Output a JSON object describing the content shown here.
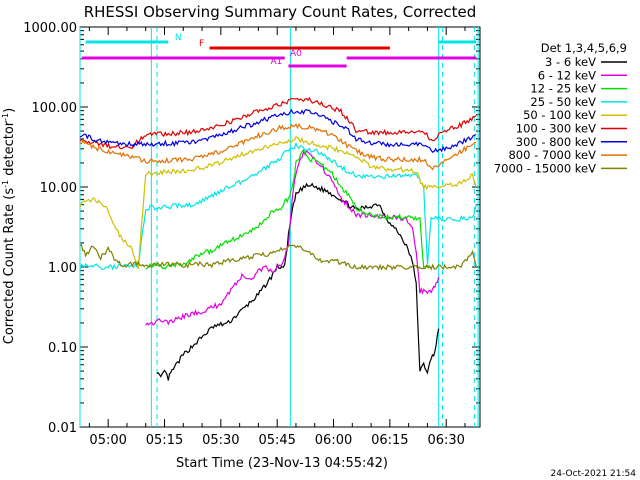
{
  "chart_data": {
    "type": "line",
    "title": "RHESSI Observing Summary Count Rates, Corrected",
    "xlabel": "Start Time (23-Nov-13 04:55:42)",
    "ylabel_main": "Corrected Count Rate (s",
    "ylabel_sup": "-1",
    "ylabel_tail": " detector",
    "ylabel_sup2": "-1",
    "ylabel_end": ")",
    "yscale": "log",
    "ylim": [
      0.01,
      1000
    ],
    "yticks": [
      "1000.00",
      "100.00",
      "10.00",
      "1.00",
      "0.10",
      "0.01"
    ],
    "xlim_minutes": [
      -7.5,
      99
    ],
    "xticks": [
      "05:00",
      "05:15",
      "05:30",
      "05:45",
      "06:00",
      "06:15",
      "06:30"
    ],
    "legend_title": "Det 1,3,4,5,6,9",
    "footer": "24-Oct-2021 21:54",
    "bars": [
      {
        "label": "N",
        "color": "#00e5e5",
        "segments": [
          [
            -6.0,
            16.0
          ],
          [
            88.0,
            98.0
          ]
        ],
        "row": 0
      },
      {
        "label": "F",
        "color": "#e00000",
        "segments": [
          [
            27.0,
            75.0
          ]
        ],
        "row": 1
      },
      {
        "label": "A0",
        "color": "#e000e0",
        "segments": [
          [
            -7.0,
            47.0
          ],
          [
            63.5,
            98.0
          ]
        ],
        "row": 2
      },
      {
        "label": "A1",
        "color": "#e000e0",
        "segments": [
          [
            48.0,
            63.5
          ]
        ],
        "row": 3
      }
    ],
    "vlines_solid": [
      -7.5,
      11.5,
      48.5,
      88.0,
      98.5
    ],
    "vlines_dashed": [
      13.0,
      89.0,
      97.5
    ],
    "series": [
      {
        "name": "3 - 6 keV",
        "color": "#000000",
        "x": [
          13,
          14,
          15,
          16,
          17,
          20,
          24,
          28,
          32,
          36,
          40,
          43,
          45,
          47,
          48,
          49,
          50,
          52,
          54,
          55,
          58,
          61,
          63,
          66,
          69,
          72,
          75,
          77,
          79,
          81,
          82,
          83,
          84,
          85,
          86,
          87,
          88
        ],
        "y": [
          0.05,
          0.04,
          0.05,
          0.04,
          0.05,
          0.08,
          0.12,
          0.18,
          0.2,
          0.3,
          0.45,
          0.7,
          1.0,
          1.0,
          2.5,
          5.0,
          8.0,
          10.0,
          10.5,
          10.0,
          9.0,
          7.5,
          6.5,
          5.2,
          5.6,
          6.2,
          3.5,
          2.8,
          2.0,
          1.2,
          0.6,
          0.05,
          0.06,
          0.05,
          0.07,
          0.09,
          0.17
        ]
      },
      {
        "name": "6 - 12 keV",
        "color": "#e000e0",
        "x": [
          10,
          12,
          14,
          16,
          18,
          21,
          24,
          27,
          30,
          33,
          36,
          38,
          40,
          42,
          44,
          45,
          46,
          47,
          48,
          49,
          50,
          52,
          54,
          56,
          58,
          60,
          62,
          63,
          66,
          69,
          72,
          76,
          79,
          81,
          82,
          83,
          84,
          85,
          86,
          87,
          88
        ],
        "y": [
          0.2,
          0.2,
          0.22,
          0.2,
          0.22,
          0.25,
          0.27,
          0.3,
          0.35,
          0.55,
          0.8,
          0.7,
          0.9,
          1.0,
          0.8,
          1.0,
          1.1,
          1.3,
          2.0,
          7.0,
          15.0,
          28.0,
          25.0,
          20.0,
          15.0,
          11.0,
          7.0,
          6.5,
          4.5,
          4.4,
          4.3,
          4.2,
          4.0,
          3.0,
          1.5,
          0.5,
          0.5,
          0.48,
          0.5,
          0.55,
          0.75
        ]
      },
      {
        "name": "12 - 25 keV",
        "color": "#00e000",
        "x": [
          10,
          13,
          16,
          19,
          22,
          25,
          28,
          31,
          34,
          37,
          40,
          42,
          44,
          46,
          47,
          48,
          49,
          50,
          52,
          54,
          56,
          58,
          60,
          62,
          63,
          64,
          66,
          70,
          74,
          78,
          81,
          83,
          84,
          86
        ],
        "y": [
          1.0,
          1.05,
          1.0,
          1.1,
          1.2,
          1.5,
          1.6,
          2.0,
          2.3,
          2.7,
          3.2,
          4.0,
          5.0,
          5.5,
          6.5,
          7.0,
          9.5,
          20.0,
          28.0,
          22.0,
          20.0,
          17.0,
          14.0,
          10.0,
          9.0,
          8.0,
          5.5,
          4.5,
          4.2,
          4.2,
          4.1,
          4.0,
          1.0,
          0.95
        ]
      },
      {
        "name": "25 - 50 keV",
        "color": "#00e5e5",
        "x": [
          -7.5,
          -4,
          -2,
          0,
          2,
          4,
          6,
          8,
          10,
          12,
          14,
          18,
          22,
          26,
          30,
          34,
          38,
          40,
          44,
          46,
          48,
          50,
          52,
          54,
          56,
          58,
          60,
          62,
          64,
          66,
          70,
          74,
          78,
          82,
          84,
          85,
          86,
          88,
          90,
          94,
          97,
          98
        ],
        "y": [
          1.0,
          1.05,
          1.0,
          1.0,
          1.0,
          1.05,
          1.0,
          1.05,
          5.5,
          5.6,
          5.5,
          5.8,
          6.0,
          7.0,
          9.0,
          11.0,
          13.0,
          15.0,
          20.0,
          23.0,
          30.0,
          33.0,
          31.0,
          29.0,
          27.0,
          24.0,
          21.0,
          18.0,
          15.5,
          14.0,
          13.5,
          13.5,
          13.8,
          13.8,
          10.0,
          1.1,
          4.0,
          4.0,
          4.0,
          4.0,
          4.0,
          6.0
        ]
      },
      {
        "name": "50 - 100 keV",
        "color": "#d0c000",
        "x": [
          -7.5,
          -4,
          -1,
          1,
          3,
          6,
          8,
          10,
          12,
          16,
          20,
          24,
          28,
          32,
          36,
          40,
          44,
          48,
          50,
          52,
          54,
          56,
          60,
          64,
          66,
          70,
          74,
          78,
          82,
          84,
          86,
          88,
          90,
          94,
          97,
          98
        ],
        "y": [
          6.0,
          7.0,
          6.0,
          4.0,
          2.5,
          1.8,
          1.0,
          15.0,
          15.0,
          15.5,
          16.0,
          17.0,
          19.0,
          22.0,
          26.0,
          30.0,
          34.0,
          38.0,
          40.0,
          38.0,
          36.0,
          34.0,
          30.0,
          27.0,
          24.0,
          18.0,
          17.0,
          16.5,
          16.0,
          10.0,
          10.0,
          10.0,
          10.5,
          11.0,
          14.0,
          10.0
        ]
      },
      {
        "name": "100 - 300 keV",
        "color": "#e00000",
        "x": [
          -7.5,
          -4,
          -1,
          2,
          6,
          10,
          14,
          18,
          22,
          26,
          30,
          34,
          38,
          42,
          46,
          50,
          52,
          54,
          58,
          62,
          64,
          66,
          70,
          74,
          78,
          82,
          84,
          86,
          90,
          94,
          98
        ],
        "y": [
          40.0,
          36.0,
          33.0,
          32.0,
          31.0,
          45.0,
          46.0,
          47.0,
          48.0,
          52.0,
          60.0,
          70.0,
          82.0,
          95.0,
          110.0,
          125.0,
          125.0,
          120.0,
          105.0,
          88.0,
          70.0,
          50.0,
          48.0,
          48.0,
          48.0,
          49.0,
          50.0,
          38.0,
          50.0,
          60.0,
          78.0
        ]
      },
      {
        "name": "300 - 800 keV",
        "color": "#0000e0",
        "x": [
          -7.5,
          -4,
          -1,
          2,
          6,
          10,
          14,
          18,
          22,
          26,
          30,
          34,
          38,
          42,
          46,
          50,
          54,
          58,
          62,
          64,
          66,
          70,
          74,
          78,
          82,
          84,
          86,
          90,
          94,
          98
        ],
        "y": [
          45.0,
          40.0,
          37.0,
          36.0,
          34.0,
          34.0,
          35.0,
          35.0,
          36.0,
          40.0,
          45.0,
          52.0,
          60.0,
          70.0,
          80.0,
          90.0,
          85.0,
          72.0,
          58.0,
          50.0,
          40.0,
          36.0,
          34.0,
          34.0,
          34.0,
          34.0,
          28.0,
          30.0,
          36.0,
          45.0
        ]
      },
      {
        "name": "800 - 7000 keV",
        "color": "#e07000",
        "x": [
          -7.5,
          -4,
          -1,
          2,
          6,
          10,
          14,
          18,
          22,
          26,
          30,
          34,
          38,
          42,
          46,
          50,
          54,
          58,
          62,
          64,
          66,
          70,
          74,
          78,
          82,
          84,
          86,
          90,
          94,
          98
        ],
        "y": [
          38.0,
          32.0,
          28.0,
          26.0,
          24.0,
          21.0,
          21.0,
          22.0,
          22.0,
          24.0,
          28.0,
          33.0,
          40.0,
          48.0,
          55.0,
          58.0,
          55.0,
          48.0,
          38.0,
          32.0,
          28.0,
          24.0,
          22.0,
          22.0,
          22.0,
          22.0,
          17.0,
          22.0,
          28.0,
          36.0
        ]
      },
      {
        "name": "7000 - 15000 keV",
        "color": "#808000",
        "x": [
          -7.5,
          -6,
          -4,
          -2,
          0,
          2,
          3,
          4,
          8,
          12,
          16,
          20,
          24,
          28,
          32,
          36,
          40,
          44,
          48,
          52,
          56,
          60,
          63,
          64,
          66,
          70,
          74,
          78,
          82,
          86,
          90,
          94,
          97,
          98
        ],
        "y": [
          2.0,
          1.4,
          1.8,
          1.3,
          1.7,
          1.2,
          1.1,
          1.05,
          1.1,
          1.05,
          1.1,
          1.05,
          1.1,
          1.05,
          1.2,
          1.3,
          1.4,
          1.5,
          1.8,
          1.7,
          1.2,
          1.2,
          1.1,
          1.05,
          1.0,
          1.0,
          1.0,
          1.0,
          1.0,
          1.0,
          1.0,
          1.0,
          1.5,
          1.0
        ]
      }
    ]
  }
}
